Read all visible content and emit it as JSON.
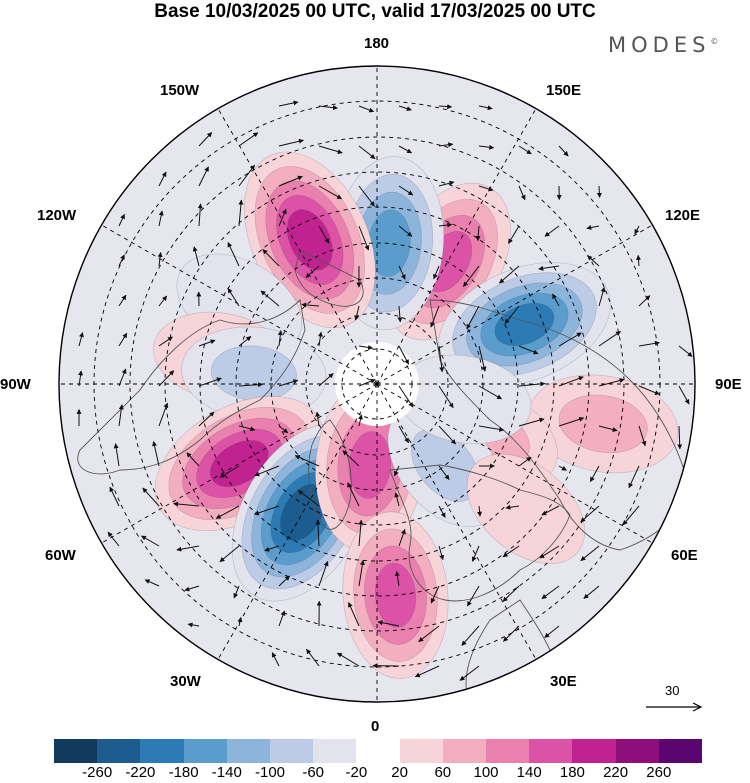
{
  "title": "Base 10/03/2025 00 UTC, valid 17/03/2025 00 UTC",
  "brand": {
    "name": "MODES",
    "mark": "©"
  },
  "longitude_labels": {
    "lon_180": "180",
    "lon_150e": "150E",
    "lon_120e": "120E",
    "lon_90e": "90E",
    "lon_60e": "60E",
    "lon_30e": "30E",
    "lon_0": "0",
    "lon_30w": "30W",
    "lon_60w": "60W",
    "lon_90w": "90W",
    "lon_120w": "120W",
    "lon_150w": "150W"
  },
  "vector_reference": {
    "value": "30"
  },
  "colorbar": {
    "ticks": [
      "-260",
      "-220",
      "-180",
      "-140",
      "-100",
      "-60",
      "-20",
      "20",
      "60",
      "100",
      "140",
      "180",
      "220",
      "260"
    ],
    "colors": [
      "#123a5c",
      "#1c5c8e",
      "#2c7bb4",
      "#5a9dcc",
      "#8db5dc",
      "#bccce6",
      "#e3e3ee",
      "#ffffff",
      "#f7d4d8",
      "#f3aec0",
      "#ea80ae",
      "#dc52a6",
      "#c0228f",
      "#8e0f7c",
      "#5b0670"
    ]
  },
  "map": {
    "colors": {
      "land_outline": "#555555",
      "graticule": "#000000",
      "arrow": "#111111"
    },
    "anomalies": [
      {
        "lon": 150,
        "lat": 50,
        "value": 170
      },
      {
        "lon": 175,
        "lat": 50,
        "value": -180
      },
      {
        "lon": -155,
        "lat": 45,
        "value": 220
      },
      {
        "lon": 112,
        "lat": 45,
        "value": -200
      },
      {
        "lon": 80,
        "lat": 25,
        "value": 110
      },
      {
        "lon": 65,
        "lat": 55,
        "value": 90
      },
      {
        "lon": -120,
        "lat": 45,
        "value": -60
      },
      {
        "lon": -100,
        "lat": 45,
        "value": 60
      },
      {
        "lon": -95,
        "lat": 55,
        "value": -90
      },
      {
        "lon": -60,
        "lat": 45,
        "value": 210
      },
      {
        "lon": -30,
        "lat": 48,
        "value": -240
      },
      {
        "lon": -5,
        "lat": 67,
        "value": 180
      },
      {
        "lon": 5,
        "lat": 30,
        "value": 160
      },
      {
        "lon": 40,
        "lat": 60,
        "value": -80
      },
      {
        "lon": 50,
        "lat": 35,
        "value": 60
      },
      {
        "lon": 80,
        "lat": 65,
        "value": -60
      }
    ]
  }
}
